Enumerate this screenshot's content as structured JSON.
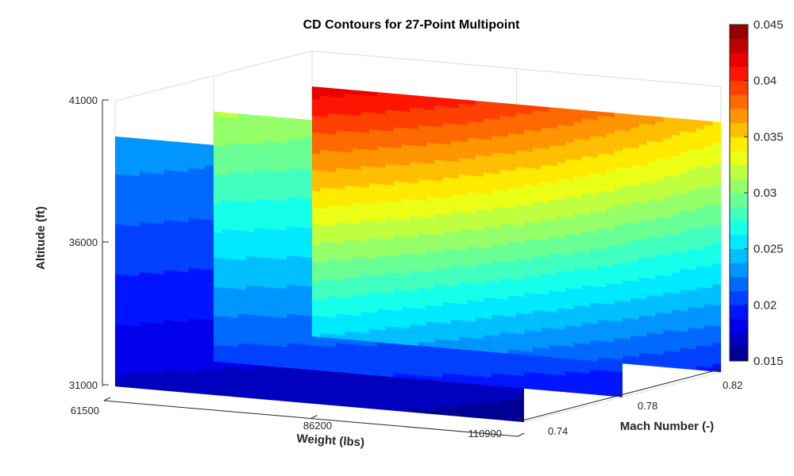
{
  "chart_data": {
    "type": "heatmap",
    "title": "CD Contours for 27-Point Multipoint",
    "xlabel": "Weight (lbs)",
    "ylabel": "Altitude (ft)",
    "zlabel": "Mach Number (-)",
    "weight_ticks": [
      "61500",
      "86200",
      "110900"
    ],
    "altitude_ticks": [
      "41000",
      "36000",
      "31000"
    ],
    "mach_ticks": [
      "0.82",
      "0.78",
      "0.74"
    ],
    "colorbar": {
      "min": 0.015,
      "max": 0.045,
      "ticks": [
        "0.045",
        "0.04",
        "0.035",
        "0.03",
        "0.025",
        "0.02",
        "0.015"
      ],
      "levels": 24,
      "colormap": "jet"
    },
    "series": [
      {
        "mach": 0.74,
        "cd_corners": {
          "low_alt_low_w": 0.0172,
          "high_alt_low_w": 0.0235,
          "low_alt_high_w": 0.0158,
          "high_alt_high_w": 0.0205
        }
      },
      {
        "mach": 0.78,
        "cd_corners": {
          "low_alt_low_w": 0.0205,
          "high_alt_low_w": 0.0315,
          "low_alt_high_w": 0.0192,
          "high_alt_high_w": 0.0265
        }
      },
      {
        "mach": 0.82,
        "cd_corners": {
          "low_alt_low_w": 0.025,
          "high_alt_low_w": 0.042,
          "low_alt_high_w": 0.0195,
          "high_alt_high_w": 0.035
        }
      }
    ],
    "grid": true
  }
}
